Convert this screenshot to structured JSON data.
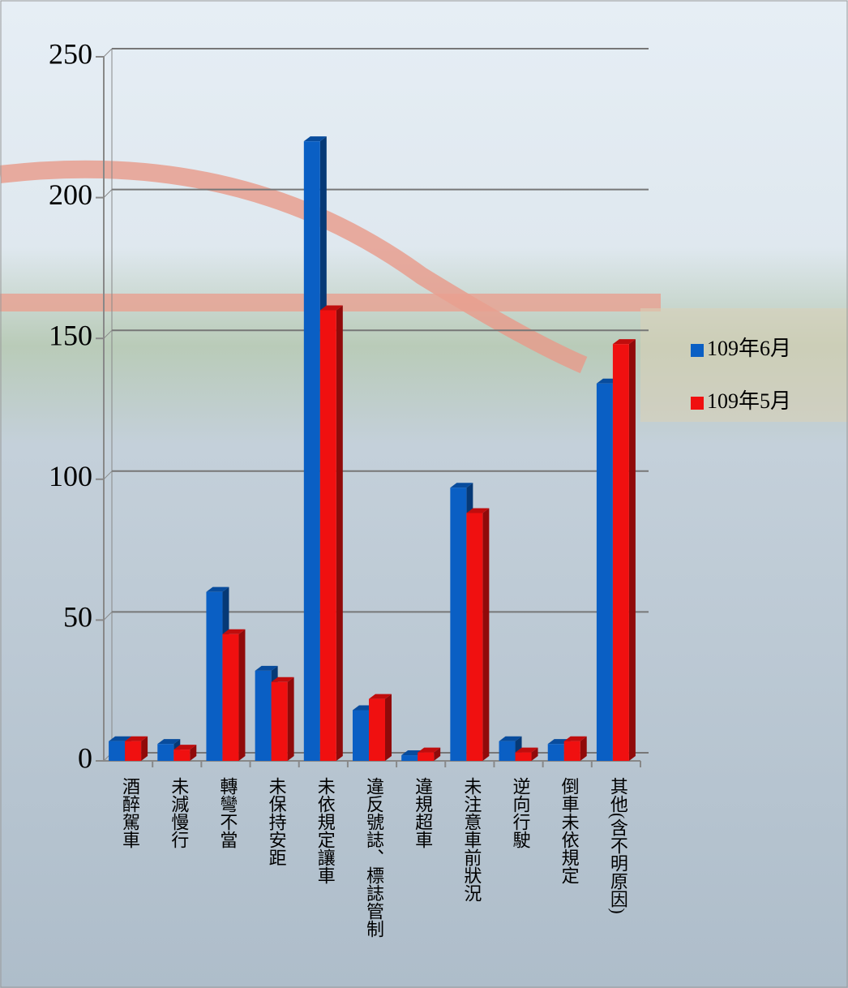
{
  "chart_data": {
    "type": "bar",
    "categories": [
      "酒醉駕車",
      "未減慢行",
      "轉彎不當",
      "未保持安距",
      "未依規定讓車",
      "違反號誌、標誌管制",
      "違規超車",
      "未注意車前狀況",
      "逆向行駛",
      "倒車未依規定",
      "其他(含不明原因)"
    ],
    "series": [
      {
        "name": "109年6月",
        "color": "#0a5fc4",
        "values": [
          7,
          6,
          60,
          32,
          220,
          18,
          2,
          97,
          7,
          6,
          134
        ]
      },
      {
        "name": "109年5月",
        "color": "#f01010",
        "values": [
          7,
          4,
          45,
          28,
          160,
          22,
          3,
          88,
          3,
          7,
          148
        ]
      }
    ],
    "ylim": [
      0,
      250
    ],
    "yticks": [
      0,
      50,
      100,
      150,
      200,
      250
    ],
    "grid": true,
    "legend": "right"
  }
}
